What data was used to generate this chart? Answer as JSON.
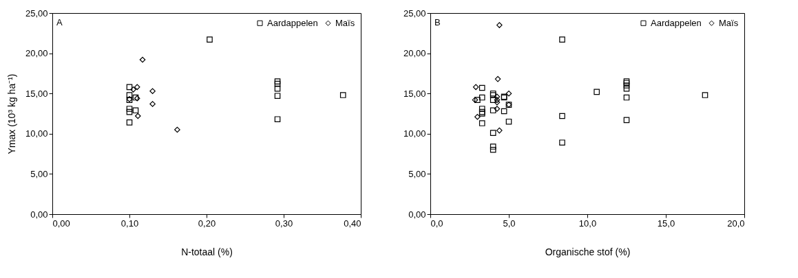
{
  "chart_data": [
    {
      "type": "scatter",
      "xlabel": "N-totaal (%)",
      "ylabel": "Ymax (10³ kg ha⁻¹)",
      "annotations": [
        "A"
      ],
      "legend": "top right",
      "grid": false,
      "xlim": [
        0,
        0.4
      ],
      "xticks": [
        {
          "value": 0,
          "label": "0,00"
        },
        {
          "value": 0.1,
          "label": "0,10"
        },
        {
          "value": 0.2,
          "label": "0,20"
        },
        {
          "value": 0.3,
          "label": "0,30"
        },
        {
          "value": 0.4,
          "label": "0,40"
        }
      ],
      "ylim": [
        0,
        25
      ],
      "yticks": [
        {
          "value": 0,
          "label": "0,00"
        },
        {
          "value": 5,
          "label": "5,00"
        },
        {
          "value": 10,
          "label": "10,00"
        },
        {
          "value": 15,
          "label": "15,00"
        },
        {
          "value": 20,
          "label": "20,00"
        },
        {
          "value": 25,
          "label": "25,00"
        }
      ],
      "series": [
        {
          "name": "Aardappelen",
          "color": "#000000",
          "marker": "square",
          "x": [
            0.1,
            0.1,
            0.1,
            0.1,
            0.1,
            0.1,
            0.108,
            0.108,
            0.204,
            0.292,
            0.292,
            0.292,
            0.292,
            0.292,
            0.377
          ],
          "values": [
            15.8,
            14.8,
            14.2,
            13.1,
            12.7,
            11.4,
            14.5,
            12.9,
            21.7,
            16.5,
            16.2,
            15.6,
            14.7,
            11.8,
            14.8
          ]
        },
        {
          "name": "Maïs",
          "color": "#000000",
          "marker": "diamond",
          "x": [
            0.1,
            0.105,
            0.11,
            0.11,
            0.111,
            0.117,
            0.13,
            0.13,
            0.162
          ],
          "values": [
            14.3,
            15.5,
            15.8,
            14.4,
            12.2,
            19.2,
            15.3,
            13.7,
            10.5
          ]
        }
      ]
    },
    {
      "type": "scatter",
      "xlabel": "Organische stof (%)",
      "annotations": [
        "B"
      ],
      "legend": "top right",
      "grid": false,
      "xlim": [
        0,
        20
      ],
      "xticks": [
        {
          "value": 0,
          "label": "0,0"
        },
        {
          "value": 5,
          "label": "5,0"
        },
        {
          "value": 10,
          "label": "10,0"
        },
        {
          "value": 15,
          "label": "15,0"
        },
        {
          "value": 20,
          "label": "20,0"
        }
      ],
      "ylim": [
        0,
        25
      ],
      "yticks": [
        {
          "value": 0,
          "label": "0,00"
        },
        {
          "value": 5,
          "label": "5,00"
        },
        {
          "value": 10,
          "label": "10,00"
        },
        {
          "value": 15,
          "label": "15,00"
        },
        {
          "value": 20,
          "label": "20,00"
        },
        {
          "value": 25,
          "label": "25,00"
        }
      ],
      "series": [
        {
          "name": "Aardappelen",
          "color": "#000000",
          "marker": "square",
          "x": [
            3.0,
            3.3,
            3.3,
            3.3,
            3.3,
            3.3,
            3.3,
            4.0,
            4.0,
            4.0,
            4.0,
            4.0,
            4.0,
            4.0,
            4.7,
            4.7,
            4.7,
            5.0,
            5.0,
            8.4,
            8.4,
            8.4,
            10.6,
            12.5,
            12.5,
            12.5,
            12.5,
            12.5,
            12.5,
            17.5
          ],
          "values": [
            14.2,
            15.7,
            14.5,
            13.1,
            12.7,
            12.5,
            11.3,
            15.0,
            14.8,
            14.2,
            12.9,
            10.1,
            8.4,
            8.0,
            14.6,
            14.5,
            12.8,
            13.6,
            11.5,
            21.7,
            12.2,
            8.9,
            15.2,
            16.5,
            16.3,
            16.0,
            15.6,
            14.5,
            11.7,
            14.8
          ]
        },
        {
          "name": "Maïs",
          "color": "#000000",
          "marker": "diamond",
          "x": [
            2.85,
            2.9,
            3.0,
            4.25,
            4.25,
            4.25,
            4.25,
            4.3,
            4.4,
            4.4,
            5.0,
            5.0
          ],
          "values": [
            14.2,
            15.8,
            12.1,
            14.6,
            14.2,
            13.9,
            13.1,
            16.8,
            23.5,
            10.4,
            13.6,
            15.0
          ]
        }
      ]
    }
  ]
}
